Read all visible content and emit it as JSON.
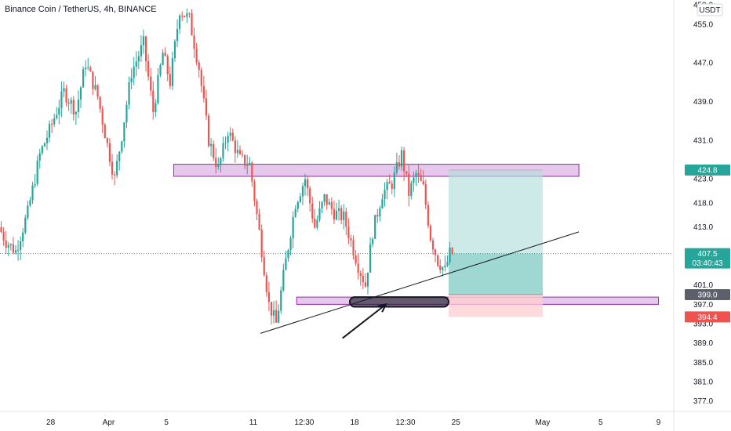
{
  "chart_data": {
    "type": "candlestick",
    "title": "Binance Coin / TetherUS, 4h, BINANCE",
    "currency": "USDT",
    "y_range": [
      375.0,
      460.0
    ],
    "x_range": [
      "2021-03-24 12:00",
      "2021-05-10 00:00"
    ],
    "y_ticks": [
      "459.0",
      "455.0",
      "447.0",
      "439.0",
      "431.0",
      "423.0",
      "418.0",
      "413.0",
      "407.0",
      "401.0",
      "397.0",
      "393.0",
      "389.0",
      "385.0",
      "381.0",
      "377.0"
    ],
    "x_ticks": [
      {
        "label": "28",
        "t": "2021-03-28 00:00"
      },
      {
        "label": "Apr",
        "t": "2021-04-01 00:00"
      },
      {
        "label": "5",
        "t": "2021-04-05 00:00"
      },
      {
        "label": "11",
        "t": "2021-04-11 00:00"
      },
      {
        "label": "12:30",
        "t": "2021-04-14 12:30"
      },
      {
        "label": "18",
        "t": "2021-04-18 00:00"
      },
      {
        "label": "12:30",
        "t": "2021-04-21 12:30"
      },
      {
        "label": "25",
        "t": "2021-04-25 00:00"
      },
      {
        "label": "May",
        "t": "2021-05-01 00:00"
      },
      {
        "label": "5",
        "t": "2021-05-05 00:00"
      },
      {
        "label": "9",
        "t": "2021-05-09 00:00"
      }
    ],
    "colors": {
      "up": "#26a69a",
      "down": "#ef5350",
      "zone_fill": "#e1bee7",
      "zone_border": "#9c27b0",
      "profit": "#b2dfdb",
      "loss": "#ffcdd2"
    },
    "price_path": [
      [
        "2021-03-24 12:00",
        413.0
      ],
      [
        "2021-03-25 00:00",
        410.0
      ],
      [
        "2021-03-25 16:00",
        408.0
      ],
      [
        "2021-03-26 12:00",
        416.0
      ],
      [
        "2021-03-27 08:00",
        428.0
      ],
      [
        "2021-03-28 00:00",
        433.0
      ],
      [
        "2021-03-29 00:00",
        441.0
      ],
      [
        "2021-03-29 20:00",
        437.0
      ],
      [
        "2021-03-30 12:00",
        447.0
      ],
      [
        "2021-03-31 08:00",
        440.0
      ],
      [
        "2021-04-01 00:00",
        430.0
      ],
      [
        "2021-04-01 12:00",
        423.0
      ],
      [
        "2021-04-02 00:00",
        432.0
      ],
      [
        "2021-04-02 16:00",
        445.0
      ],
      [
        "2021-04-03 12:00",
        451.0
      ],
      [
        "2021-04-04 04:00",
        437.0
      ],
      [
        "2021-04-04 20:00",
        449.0
      ],
      [
        "2021-04-05 08:00",
        443.0
      ],
      [
        "2021-04-06 00:00",
        458.0
      ],
      [
        "2021-04-06 16:00",
        456.0
      ],
      [
        "2021-04-07 08:00",
        446.0
      ],
      [
        "2021-04-08 00:00",
        431.0
      ],
      [
        "2021-04-08 16:00",
        425.0
      ],
      [
        "2021-04-09 08:00",
        433.0
      ],
      [
        "2021-04-10 04:00",
        427.0
      ],
      [
        "2021-04-10 20:00",
        426.0
      ],
      [
        "2021-04-11 12:00",
        412.0
      ],
      [
        "2021-04-12 04:00",
        397.0
      ],
      [
        "2021-04-12 16:00",
        393.0
      ],
      [
        "2021-04-13 08:00",
        406.0
      ],
      [
        "2021-04-14 00:00",
        418.0
      ],
      [
        "2021-04-14 16:00",
        423.0
      ],
      [
        "2021-04-15 08:00",
        413.0
      ],
      [
        "2021-04-16 00:00",
        419.0
      ],
      [
        "2021-04-16 16:00",
        416.0
      ],
      [
        "2021-04-17 08:00",
        415.0
      ],
      [
        "2021-04-17 20:00",
        410.0
      ],
      [
        "2021-04-18 08:00",
        405.0
      ],
      [
        "2021-04-18 20:00",
        401.0
      ],
      [
        "2021-04-19 08:00",
        412.0
      ],
      [
        "2021-04-20 00:00",
        420.0
      ],
      [
        "2021-04-20 16:00",
        422.0
      ],
      [
        "2021-04-21 08:00",
        428.0
      ],
      [
        "2021-04-21 20:00",
        420.0
      ],
      [
        "2021-04-22 08:00",
        424.0
      ],
      [
        "2021-04-22 20:00",
        421.0
      ],
      [
        "2021-04-23 08:00",
        411.0
      ],
      [
        "2021-04-23 20:00",
        406.0
      ],
      [
        "2021-04-24 08:00",
        404.0
      ],
      [
        "2021-04-24 16:00",
        407.5
      ]
    ],
    "series": [
      {
        "name": "Binance Coin / TetherUS, 4h, BINANCE",
        "values": "candlesticks (4h OHLC), approximated by the price_path above"
      }
    ],
    "annotations": [
      {
        "kind": "zone",
        "y_range": [
          423.5,
          426.0
        ],
        "t_range": [
          "2021-04-05 12:00",
          "2021-05-03 12:00"
        ]
      },
      {
        "kind": "zone",
        "y_range": [
          397.0,
          398.5
        ],
        "t_range": [
          "2021-04-14 00:00",
          "2021-05-09 00:00"
        ]
      },
      {
        "kind": "trendline",
        "points": [
          [
            "2021-04-11 12:00",
            391.0
          ],
          [
            "2021-05-03 12:00",
            412.0
          ]
        ]
      },
      {
        "kind": "arrow",
        "from": [
          "2021-04-17 04:00",
          390.0
        ],
        "to": [
          "2021-04-20 04:00",
          397.0
        ]
      },
      {
        "kind": "highlight",
        "y_range": [
          396.5,
          398.5
        ],
        "t_range": [
          "2021-04-17 16:00",
          "2021-04-24 12:00"
        ]
      },
      {
        "kind": "long_position",
        "entry": 399.0,
        "target": 424.8,
        "stop": 394.4,
        "current": 407.5,
        "t_range": [
          "2021-04-24 12:00",
          "2021-05-01 00:00"
        ]
      }
    ],
    "price_tags": [
      {
        "label": "424.8",
        "y": 424.8,
        "color": "#26a69a"
      },
      {
        "label": "407.5",
        "sub": "03:40:43",
        "y": 407.5,
        "color": "#26a69a"
      },
      {
        "label": "399.0",
        "y": 399.0,
        "color": "#5d606b"
      },
      {
        "label": "394.4",
        "y": 394.4,
        "color": "#ef5350"
      }
    ],
    "last_price": 407.5,
    "grid": false
  }
}
